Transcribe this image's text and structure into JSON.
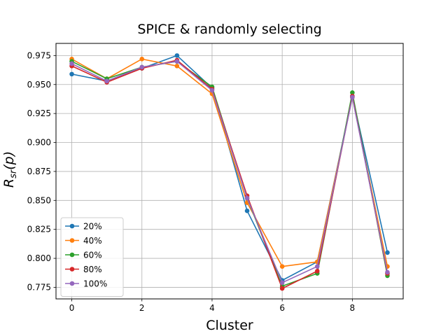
{
  "chart_data": {
    "type": "line",
    "title": "SPICE & randomly selecting",
    "xlabel": "Cluster",
    "ylabel_base": "R",
    "ylabel_sub": "sr",
    "ylabel_arg": "(p)",
    "x": [
      0,
      1,
      2,
      3,
      4,
      5,
      6,
      7,
      8,
      9
    ],
    "xlim": [
      -0.45,
      9.45
    ],
    "ylim": [
      0.765,
      0.9855
    ],
    "xticks": [
      0,
      2,
      4,
      6,
      8
    ],
    "xtick_labels": [
      "0",
      "2",
      "4",
      "6",
      "8"
    ],
    "yticks": [
      0.775,
      0.8,
      0.825,
      0.85,
      0.875,
      0.9,
      0.925,
      0.95,
      0.975
    ],
    "ytick_labels": [
      "0.775",
      "0.800",
      "0.825",
      "0.850",
      "0.875",
      "0.900",
      "0.925",
      "0.950",
      "0.975"
    ],
    "grid": true,
    "legend_location": "lower-left",
    "series": [
      {
        "name": "20%",
        "color": "#1f77b4",
        "values": [
          0.959,
          0.953,
          0.964,
          0.975,
          0.947,
          0.841,
          0.781,
          0.797,
          0.94,
          0.805
        ]
      },
      {
        "name": "40%",
        "color": "#ff7f0e",
        "values": [
          0.972,
          0.955,
          0.972,
          0.966,
          0.942,
          0.848,
          0.793,
          0.797,
          0.939,
          0.793
        ]
      },
      {
        "name": "60%",
        "color": "#2ca02c",
        "values": [
          0.97,
          0.955,
          0.965,
          0.97,
          0.948,
          0.852,
          0.776,
          0.787,
          0.943,
          0.785
        ]
      },
      {
        "name": "80%",
        "color": "#d62728",
        "values": [
          0.966,
          0.952,
          0.964,
          0.971,
          0.946,
          0.854,
          0.774,
          0.789,
          0.94,
          0.787
        ]
      },
      {
        "name": "100%",
        "color": "#9467bd",
        "values": [
          0.968,
          0.953,
          0.965,
          0.97,
          0.945,
          0.852,
          0.779,
          0.793,
          0.939,
          0.788
        ]
      }
    ]
  }
}
